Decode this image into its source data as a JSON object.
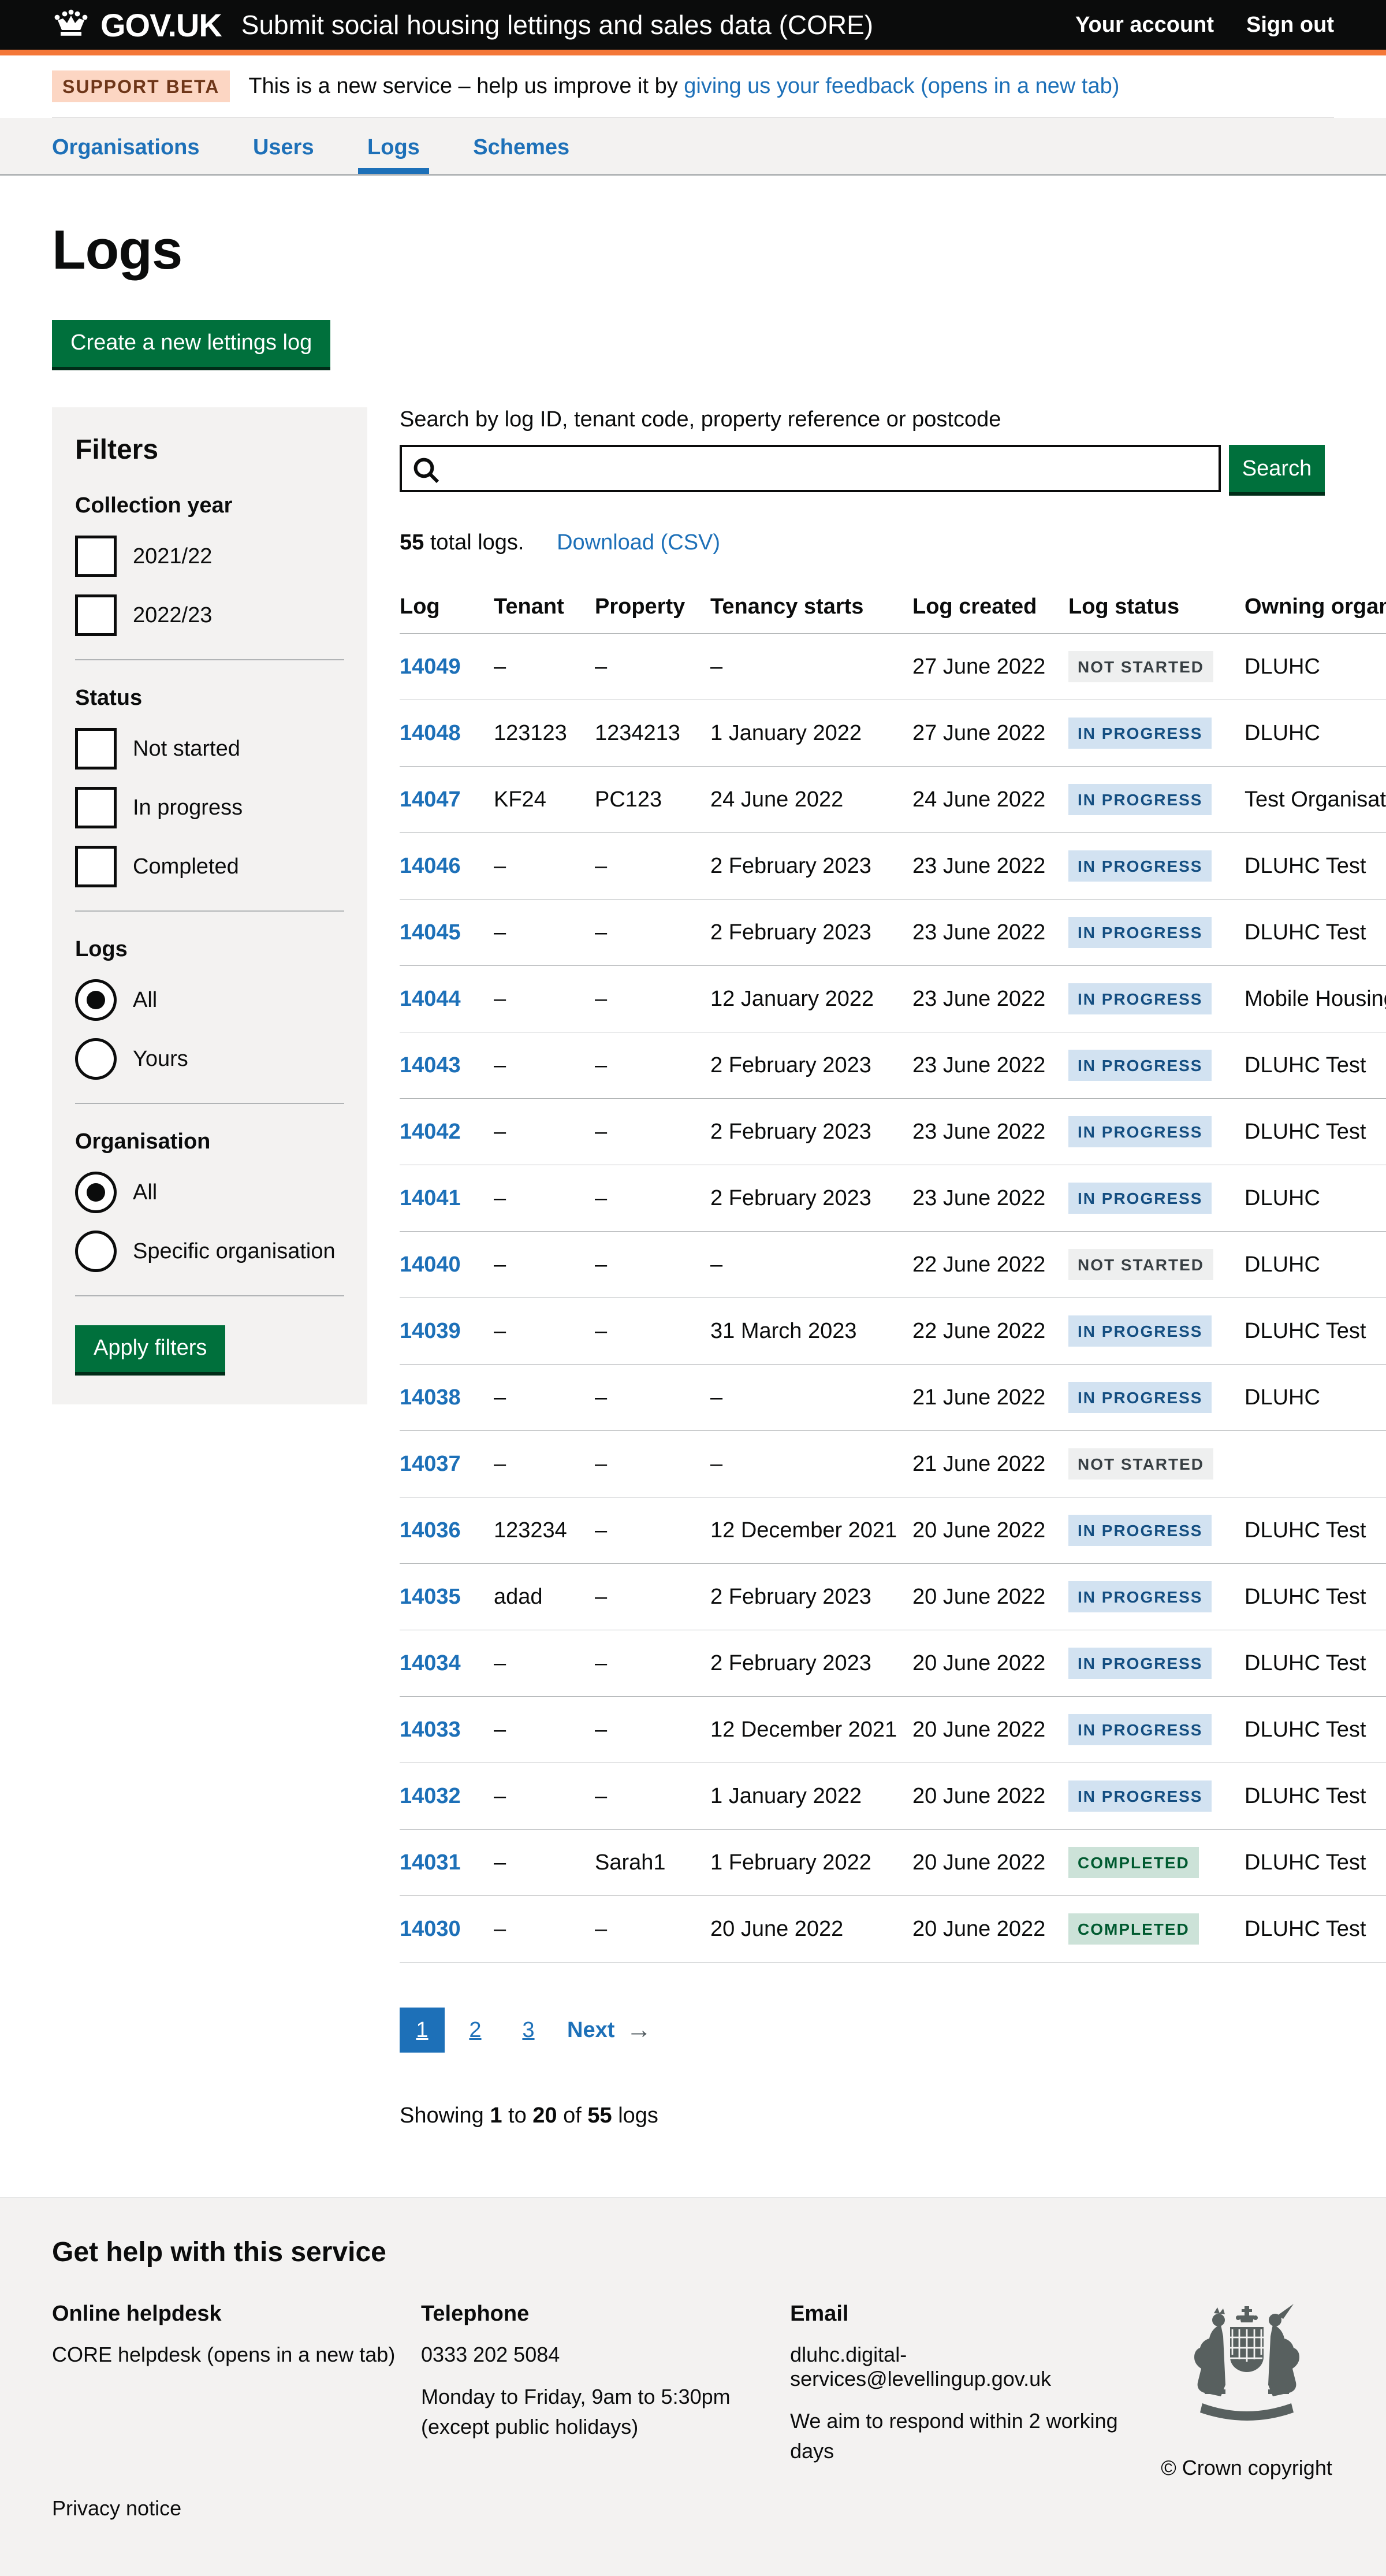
{
  "header": {
    "logotype": "GOV.UK",
    "service_name": "Submit social housing lettings and sales data (CORE)",
    "account_link": "Your account",
    "signout_link": "Sign out"
  },
  "phase_banner": {
    "tag": "SUPPORT BETA",
    "text_before": "This is a new service – help us improve it by ",
    "feedback_link": "giving us your feedback (opens in a new tab)"
  },
  "nav": {
    "items": [
      {
        "label": "Organisations",
        "active": false
      },
      {
        "label": "Users",
        "active": false
      },
      {
        "label": "Logs",
        "active": true
      },
      {
        "label": "Schemes",
        "active": false
      }
    ]
  },
  "page": {
    "title": "Logs",
    "create_button": "Create a new lettings log"
  },
  "filters": {
    "heading": "Filters",
    "collection_year": {
      "legend": "Collection year",
      "options": [
        {
          "label": "2021/22",
          "checked": false
        },
        {
          "label": "2022/23",
          "checked": false
        }
      ]
    },
    "status": {
      "legend": "Status",
      "options": [
        {
          "label": "Not started",
          "checked": false
        },
        {
          "label": "In progress",
          "checked": false
        },
        {
          "label": "Completed",
          "checked": false
        }
      ]
    },
    "logs": {
      "legend": "Logs",
      "options": [
        {
          "label": "All",
          "checked": true
        },
        {
          "label": "Yours",
          "checked": false
        }
      ]
    },
    "organisation": {
      "legend": "Organisation",
      "options": [
        {
          "label": "All",
          "checked": true
        },
        {
          "label": "Specific organisation",
          "checked": false
        }
      ]
    },
    "apply_button": "Apply filters"
  },
  "search": {
    "label": "Search by log ID, tenant code, property reference or postcode",
    "value": "",
    "button": "Search"
  },
  "results": {
    "count": "55",
    "count_suffix": " total logs.",
    "download_link": "Download (CSV)"
  },
  "table": {
    "headers": [
      "Log",
      "Tenant",
      "Property",
      "Tenancy starts",
      "Log created",
      "Log status",
      "Owning organisation"
    ],
    "rows": [
      {
        "log": "14049",
        "tenant": "–",
        "property": "–",
        "tenancy_starts": "–",
        "log_created": "27 June 2022",
        "status": "NOT STARTED",
        "status_variant": "grey",
        "owning": "DLUHC"
      },
      {
        "log": "14048",
        "tenant": "123123",
        "property": "1234213",
        "tenancy_starts": "1 January 2022",
        "log_created": "27 June 2022",
        "status": "IN PROGRESS",
        "status_variant": "blue",
        "owning": "DLUHC"
      },
      {
        "log": "14047",
        "tenant": "KF24",
        "property": "PC123",
        "tenancy_starts": "24 June 2022",
        "log_created": "24 June 2022",
        "status": "IN PROGRESS",
        "status_variant": "blue",
        "owning": "Test Organisation"
      },
      {
        "log": "14046",
        "tenant": "–",
        "property": "–",
        "tenancy_starts": "2 February 2023",
        "log_created": "23 June 2022",
        "status": "IN PROGRESS",
        "status_variant": "blue",
        "owning": "DLUHC Test"
      },
      {
        "log": "14045",
        "tenant": "–",
        "property": "–",
        "tenancy_starts": "2 February 2023",
        "log_created": "23 June 2022",
        "status": "IN PROGRESS",
        "status_variant": "blue",
        "owning": "DLUHC Test"
      },
      {
        "log": "14044",
        "tenant": "–",
        "property": "–",
        "tenancy_starts": "12 January 2022",
        "log_created": "23 June 2022",
        "status": "IN PROGRESS",
        "status_variant": "blue",
        "owning": "Mobile Housing"
      },
      {
        "log": "14043",
        "tenant": "–",
        "property": "–",
        "tenancy_starts": "2 February 2023",
        "log_created": "23 June 2022",
        "status": "IN PROGRESS",
        "status_variant": "blue",
        "owning": "DLUHC Test"
      },
      {
        "log": "14042",
        "tenant": "–",
        "property": "–",
        "tenancy_starts": "2 February 2023",
        "log_created": "23 June 2022",
        "status": "IN PROGRESS",
        "status_variant": "blue",
        "owning": "DLUHC Test"
      },
      {
        "log": "14041",
        "tenant": "–",
        "property": "–",
        "tenancy_starts": "2 February 2023",
        "log_created": "23 June 2022",
        "status": "IN PROGRESS",
        "status_variant": "blue",
        "owning": "DLUHC"
      },
      {
        "log": "14040",
        "tenant": "–",
        "property": "–",
        "tenancy_starts": "–",
        "log_created": "22 June 2022",
        "status": "NOT STARTED",
        "status_variant": "grey",
        "owning": "DLUHC"
      },
      {
        "log": "14039",
        "tenant": "–",
        "property": "–",
        "tenancy_starts": "31 March 2023",
        "log_created": "22 June 2022",
        "status": "IN PROGRESS",
        "status_variant": "blue",
        "owning": "DLUHC Test"
      },
      {
        "log": "14038",
        "tenant": "–",
        "property": "–",
        "tenancy_starts": "–",
        "log_created": "21 June 2022",
        "status": "IN PROGRESS",
        "status_variant": "blue",
        "owning": "DLUHC"
      },
      {
        "log": "14037",
        "tenant": "–",
        "property": "–",
        "tenancy_starts": "–",
        "log_created": "21 June 2022",
        "status": "NOT STARTED",
        "status_variant": "grey",
        "owning": ""
      },
      {
        "log": "14036",
        "tenant": "123234",
        "property": "–",
        "tenancy_starts": "12 December 2021",
        "log_created": "20 June 2022",
        "status": "IN PROGRESS",
        "status_variant": "blue",
        "owning": "DLUHC Test"
      },
      {
        "log": "14035",
        "tenant": "adad",
        "property": "–",
        "tenancy_starts": "2 February 2023",
        "log_created": "20 June 2022",
        "status": "IN PROGRESS",
        "status_variant": "blue",
        "owning": "DLUHC Test"
      },
      {
        "log": "14034",
        "tenant": "–",
        "property": "–",
        "tenancy_starts": "2 February 2023",
        "log_created": "20 June 2022",
        "status": "IN PROGRESS",
        "status_variant": "blue",
        "owning": "DLUHC Test"
      },
      {
        "log": "14033",
        "tenant": "–",
        "property": "–",
        "tenancy_starts": "12 December 2021",
        "log_created": "20 June 2022",
        "status": "IN PROGRESS",
        "status_variant": "blue",
        "owning": "DLUHC Test"
      },
      {
        "log": "14032",
        "tenant": "–",
        "property": "–",
        "tenancy_starts": "1 January 2022",
        "log_created": "20 June 2022",
        "status": "IN PROGRESS",
        "status_variant": "blue",
        "owning": "DLUHC Test"
      },
      {
        "log": "14031",
        "tenant": "–",
        "property": "Sarah1",
        "tenancy_starts": "1 February 2022",
        "log_created": "20 June 2022",
        "status": "COMPLETED",
        "status_variant": "green",
        "owning": "DLUHC Test"
      },
      {
        "log": "14030",
        "tenant": "–",
        "property": "–",
        "tenancy_starts": "20 June 2022",
        "log_created": "20 June 2022",
        "status": "COMPLETED",
        "status_variant": "green",
        "owning": "DLUHC Test"
      }
    ]
  },
  "pagination": {
    "pages": [
      {
        "label": "1",
        "current": true
      },
      {
        "label": "2",
        "current": false
      },
      {
        "label": "3",
        "current": false
      }
    ],
    "next_label": "Next",
    "next_arrow": "→"
  },
  "showing": {
    "prefix": "Showing ",
    "from": "1",
    "to_word": " to ",
    "to": "20",
    "of_word": " of ",
    "total": "55",
    "suffix": " logs"
  },
  "footer": {
    "heading": "Get help with this service",
    "helpdesk": {
      "heading": "Online helpdesk",
      "link": "CORE helpdesk (opens in a new tab)"
    },
    "telephone": {
      "heading": "Telephone",
      "number": "0333 202 5084",
      "hours_line1": "Monday to Friday, 9am to 5:30pm",
      "hours_line2": "(except public holidays)"
    },
    "email": {
      "heading": "Email",
      "address": "dluhc.digital-services@levellingup.gov.uk",
      "note": "We aim to respond within 2 working days"
    },
    "privacy_link": "Privacy notice",
    "copyright_link": "© Crown copyright"
  },
  "colors": {
    "header_bg": "#0b0c0c",
    "header_accent": "#f47738",
    "link_blue": "#1d70b8",
    "button_green": "#00703c",
    "panel_grey": "#f3f2f1",
    "border_grey": "#b1b4b6",
    "tag_grey_bg": "#eeefef",
    "tag_grey_text": "#383f43",
    "tag_blue_bg": "#d2e2f1",
    "tag_blue_text": "#144e81",
    "tag_green_bg": "#cce2d8",
    "tag_green_text": "#005a30",
    "beta_tag_bg": "#fcd6c3",
    "beta_tag_text": "#6e3619"
  }
}
